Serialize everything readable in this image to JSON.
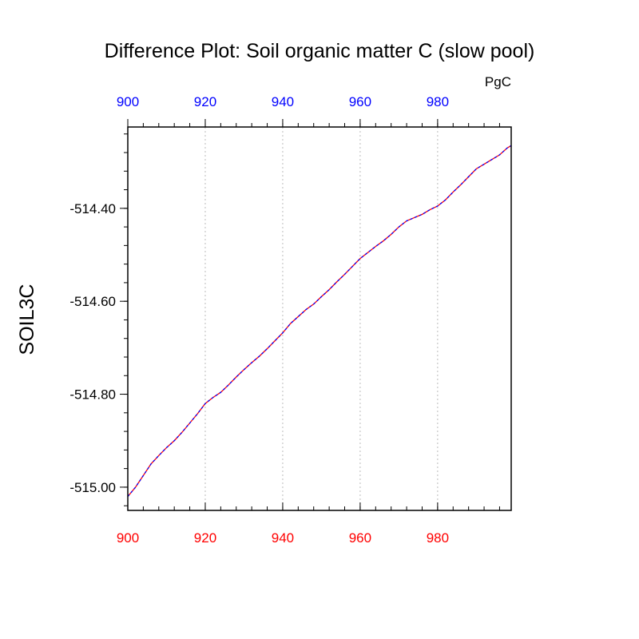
{
  "chart_data": {
    "type": "line",
    "title": "Difference Plot: Soil organic matter C (slow pool)",
    "units": "PgC",
    "xlabel": "",
    "ylabel": "SOIL3C",
    "xlim": [
      900,
      999
    ],
    "ylim": [
      -515.05,
      -514.225
    ],
    "xticks": [
      900,
      920,
      940,
      960,
      980
    ],
    "xtick_labels": [
      "900",
      "920",
      "940",
      "960",
      "980"
    ],
    "xtick_minor_step": 4,
    "yticks": [
      -514.4,
      -514.6,
      -514.8,
      -515.0
    ],
    "ytick_labels": [
      "-514.40",
      "-514.60",
      "-514.80",
      "-515.00"
    ],
    "ytick_minor_step": 0.04,
    "grid": "vertical dotted at major x ticks",
    "colors": {
      "bottom_axis_labels": "#ff0000",
      "top_axis_labels": "#0000ff",
      "line_primary": "#ff0000",
      "line_secondary": "#0000ff",
      "grid": "#bbbbbb"
    },
    "series": [
      {
        "color": "#ff0000",
        "x": [
          900,
          902,
          904,
          906,
          908,
          910,
          912,
          914,
          916,
          918,
          920,
          922,
          924,
          926,
          928,
          930,
          932,
          934,
          936,
          938,
          940,
          942,
          944,
          946,
          948,
          950,
          952,
          954,
          956,
          958,
          960,
          962,
          964,
          966,
          968,
          970,
          972,
          974,
          976,
          978,
          980,
          982,
          984,
          986,
          988,
          990,
          992,
          994,
          996,
          998,
          999
        ],
        "values": [
          -515.02,
          -515.0,
          -514.975,
          -514.95,
          -514.932,
          -514.915,
          -514.9,
          -514.882,
          -514.862,
          -514.842,
          -514.82,
          -514.807,
          -514.796,
          -514.78,
          -514.763,
          -514.747,
          -514.732,
          -514.718,
          -514.702,
          -514.685,
          -514.668,
          -514.648,
          -514.633,
          -514.618,
          -514.606,
          -514.59,
          -514.575,
          -514.558,
          -514.542,
          -514.525,
          -514.508,
          -514.495,
          -514.482,
          -514.47,
          -514.456,
          -514.44,
          -514.427,
          -514.42,
          -514.413,
          -514.403,
          -514.395,
          -514.382,
          -514.365,
          -514.349,
          -514.332,
          -514.315,
          -514.305,
          -514.295,
          -514.285,
          -514.27,
          -514.265
        ]
      }
    ]
  }
}
